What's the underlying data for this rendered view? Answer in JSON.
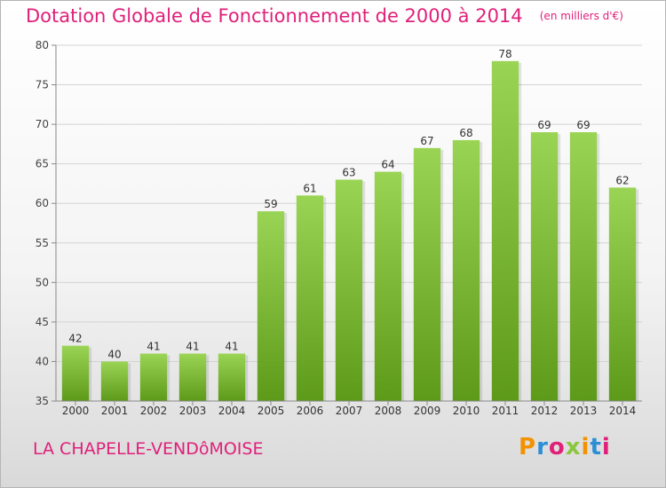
{
  "header": {
    "title": "Dotation Globale de Fonctionnement de 2000 à 2014",
    "unit": "(en milliers d'€)"
  },
  "footer": {
    "place": "LA CHAPELLE-VENDôMOISE",
    "brand": "Proxiti"
  },
  "colors": {
    "title": "#e0207a",
    "bar_top": "#9ad455",
    "bar_bottom": "#5e9a1a",
    "brand_letters": [
      "#f39200",
      "#2c8fd6",
      "#e0207a",
      "#8cc63f",
      "#f39200",
      "#2c8fd6",
      "#e0207a"
    ]
  },
  "chart_data": {
    "type": "bar",
    "title": "Dotation Globale de Fonctionnement de 2000 à 2014",
    "xlabel": "",
    "ylabel": "",
    "categories": [
      "2000",
      "2001",
      "2002",
      "2003",
      "2004",
      "2005",
      "2006",
      "2007",
      "2008",
      "2009",
      "2010",
      "2011",
      "2012",
      "2013",
      "2014"
    ],
    "values": [
      42,
      40,
      41,
      41,
      41,
      59,
      61,
      63,
      64,
      67,
      68,
      78,
      69,
      69,
      62
    ],
    "ylim": [
      35,
      80
    ],
    "yticks": [
      35,
      40,
      45,
      50,
      55,
      60,
      65,
      70,
      75,
      80
    ],
    "grid": true,
    "data_labels": true
  }
}
